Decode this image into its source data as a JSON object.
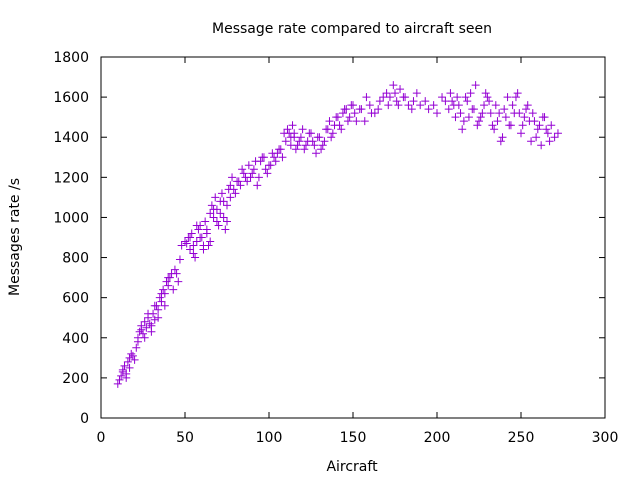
{
  "chart_data": {
    "type": "scatter",
    "title": "Message rate compared to aircraft seen",
    "xlabel": "Aircraft",
    "ylabel": "Messages rate /s",
    "xlim": [
      0,
      300
    ],
    "ylim": [
      0,
      1800
    ],
    "xticks": [
      0,
      50,
      100,
      150,
      200,
      250,
      300
    ],
    "yticks": [
      0,
      200,
      400,
      600,
      800,
      1000,
      1200,
      1400,
      1600,
      1800
    ],
    "grid": false,
    "legend": "none",
    "marker": "plus",
    "color": "#9400d3",
    "series": [
      {
        "x": [
          10,
          12,
          13,
          14,
          15,
          16,
          17,
          18,
          20,
          21,
          22,
          23,
          24,
          25,
          26,
          27,
          28,
          29,
          30,
          31,
          32,
          33,
          34,
          35,
          36,
          37,
          38,
          39,
          40,
          41,
          42,
          44,
          46,
          48,
          50,
          52,
          53,
          54,
          55,
          56,
          57,
          58,
          59,
          60,
          61,
          62,
          63,
          64,
          65,
          66,
          67,
          68,
          69,
          70,
          71,
          72,
          73,
          74,
          75,
          76,
          77,
          78,
          80,
          82,
          84,
          86,
          88,
          90,
          92,
          94,
          96,
          98,
          100,
          102,
          104,
          106,
          108,
          110,
          112,
          113,
          114,
          115,
          116,
          118,
          120,
          122,
          124,
          126,
          128,
          130,
          132,
          134,
          136,
          138,
          140,
          142,
          144,
          146,
          148,
          150,
          152,
          155,
          158,
          160,
          163,
          166,
          170,
          172,
          174,
          176,
          178,
          180,
          183,
          186,
          190,
          195,
          200,
          205,
          208,
          210,
          212,
          214,
          216,
          218,
          220,
          222,
          224,
          226,
          228,
          230,
          232,
          234,
          236,
          238,
          240,
          242,
          244,
          246,
          248,
          250,
          252,
          254,
          256,
          258,
          260,
          262,
          264,
          266,
          268,
          270
        ],
        "y": [
          170,
          210,
          240,
          260,
          220,
          280,
          300,
          320,
          290,
          350,
          400,
          430,
          460,
          420,
          480,
          450,
          500,
          470,
          430,
          520,
          490,
          560,
          540,
          600,
          580,
          640,
          620,
          680,
          660,
          700,
          720,
          740,
          680,
          860,
          880,
          900,
          840,
          920,
          860,
          800,
          880,
          940,
          960,
          900,
          840,
          980,
          920,
          860,
          1020,
          1060,
          1000,
          1100,
          1040,
          960,
          1080,
          1120,
          1000,
          940,
          1060,
          1140,
          1160,
          1200,
          1120,
          1180,
          1240,
          1200,
          1260,
          1220,
          1280,
          1200,
          1300,
          1240,
          1260,
          1320,
          1280,
          1340,
          1300,
          1380,
          1420,
          1360,
          1460,
          1400,
          1340,
          1380,
          1440,
          1360,
          1420,
          1380,
          1320,
          1400,
          1360,
          1440,
          1480,
          1420,
          1500,
          1460,
          1520,
          1540,
          1500,
          1560,
          1480,
          1540,
          1600,
          1560,
          1520,
          1580,
          1620,
          1600,
          1660,
          1580,
          1640,
          1600,
          1560,
          1580,
          1560,
          1540,
          1520,
          1580,
          1620,
          1560,
          1600,
          1520,
          1480,
          1580,
          1620,
          1540,
          1460,
          1500,
          1560,
          1600,
          1520,
          1440,
          1480,
          1380,
          1540,
          1600,
          1460,
          1520,
          1620,
          1420,
          1500,
          1560,
          1380,
          1480,
          1440,
          1360,
          1500,
          1420,
          1460,
          1400
        ]
      },
      {
        "x": [
          11,
          13,
          15,
          17,
          19,
          22,
          24,
          26,
          28,
          30,
          32,
          34,
          36,
          38,
          40,
          43,
          45,
          47,
          51,
          53,
          55,
          57,
          59,
          61,
          63,
          65,
          67,
          69,
          71,
          73,
          75,
          77,
          79,
          81,
          83,
          85,
          87,
          89,
          91,
          93,
          95,
          97,
          99,
          101,
          103,
          105,
          107,
          109,
          111,
          113,
          115,
          117,
          119,
          121,
          123,
          125,
          127,
          129,
          131,
          133,
          135,
          137,
          139,
          141,
          143,
          145,
          147,
          149,
          151,
          154,
          157,
          161,
          165,
          168,
          171,
          175,
          177,
          181,
          185,
          188,
          193,
          198,
          203,
          207,
          209,
          211,
          213,
          215,
          217,
          219,
          221,
          223,
          225,
          227,
          229,
          231,
          233,
          235,
          237,
          239,
          241,
          243,
          245,
          247,
          249,
          251,
          253,
          255,
          257,
          259,
          261,
          263,
          265,
          267,
          272
        ],
        "y": [
          190,
          230,
          200,
          250,
          310,
          380,
          440,
          400,
          520,
          460,
          560,
          500,
          620,
          560,
          700,
          640,
          720,
          790,
          870,
          900,
          820,
          960,
          900,
          860,
          940,
          880,
          1040,
          980,
          1020,
          1080,
          980,
          1100,
          1140,
          1180,
          1160,
          1220,
          1180,
          1200,
          1240,
          1160,
          1280,
          1300,
          1220,
          1260,
          1300,
          1320,
          1340,
          1420,
          1440,
          1400,
          1420,
          1360,
          1400,
          1340,
          1380,
          1420,
          1360,
          1400,
          1340,
          1380,
          1440,
          1400,
          1460,
          1500,
          1440,
          1540,
          1480,
          1560,
          1520,
          1540,
          1480,
          1520,
          1540,
          1600,
          1560,
          1620,
          1560,
          1600,
          1540,
          1620,
          1580,
          1560,
          1600,
          1540,
          1580,
          1500,
          1560,
          1440,
          1600,
          1500,
          1540,
          1660,
          1480,
          1520,
          1620,
          1580,
          1460,
          1560,
          1520,
          1400,
          1500,
          1460,
          1560,
          1600,
          1520,
          1460,
          1540,
          1480,
          1520,
          1400,
          1460,
          1500,
          1440,
          1380,
          1420
        ]
      }
    ]
  }
}
